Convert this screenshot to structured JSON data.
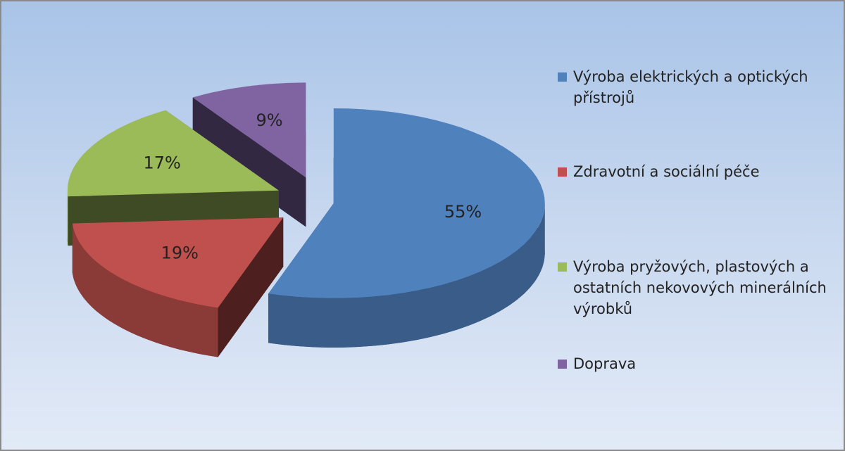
{
  "chart_data": {
    "type": "pie",
    "categories": [
      "Výroba elektrických a optických přístrojů",
      "Zdravotní a sociální péče",
      "Výroba pryžových, plastových a ostatních nekovových minerálních výrobků",
      "Doprava"
    ],
    "values": [
      55,
      19,
      17,
      9
    ],
    "value_labels": [
      "55%",
      "19%",
      "17%",
      "9%"
    ],
    "colors": [
      "#4f81bd",
      "#c0504d",
      "#9bbb59",
      "#8064a2"
    ],
    "legend": "right"
  }
}
